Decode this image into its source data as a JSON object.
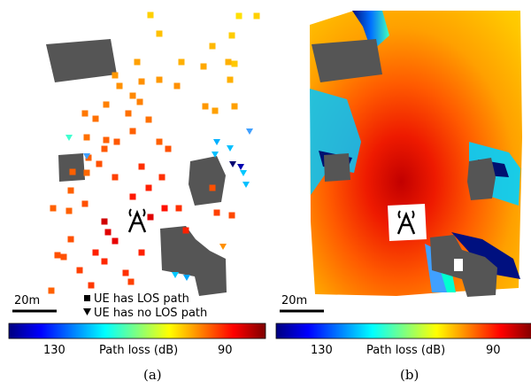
{
  "panels": [
    {
      "caption": "(a)",
      "scale_label": "20m",
      "legend": [
        {
          "marker": "square",
          "label": "UE has LOS path"
        },
        {
          "marker": "triangle",
          "label": "UE has no LOS path"
        }
      ],
      "colorbar": {
        "label": "Path loss (dB)",
        "ticks": [
          "130",
          "90"
        ]
      }
    },
    {
      "caption": "(b)",
      "scale_label": "20m",
      "colorbar": {
        "label": "Path loss (dB)",
        "ticks": [
          "130",
          "90"
        ]
      }
    }
  ],
  "colors": {
    "building": "#555555",
    "colormap": [
      "#00007f",
      "#0000ff",
      "#007fff",
      "#00ffff",
      "#7fff7f",
      "#ffff00",
      "#ff7f00",
      "#ff0000",
      "#7f0000"
    ]
  }
}
